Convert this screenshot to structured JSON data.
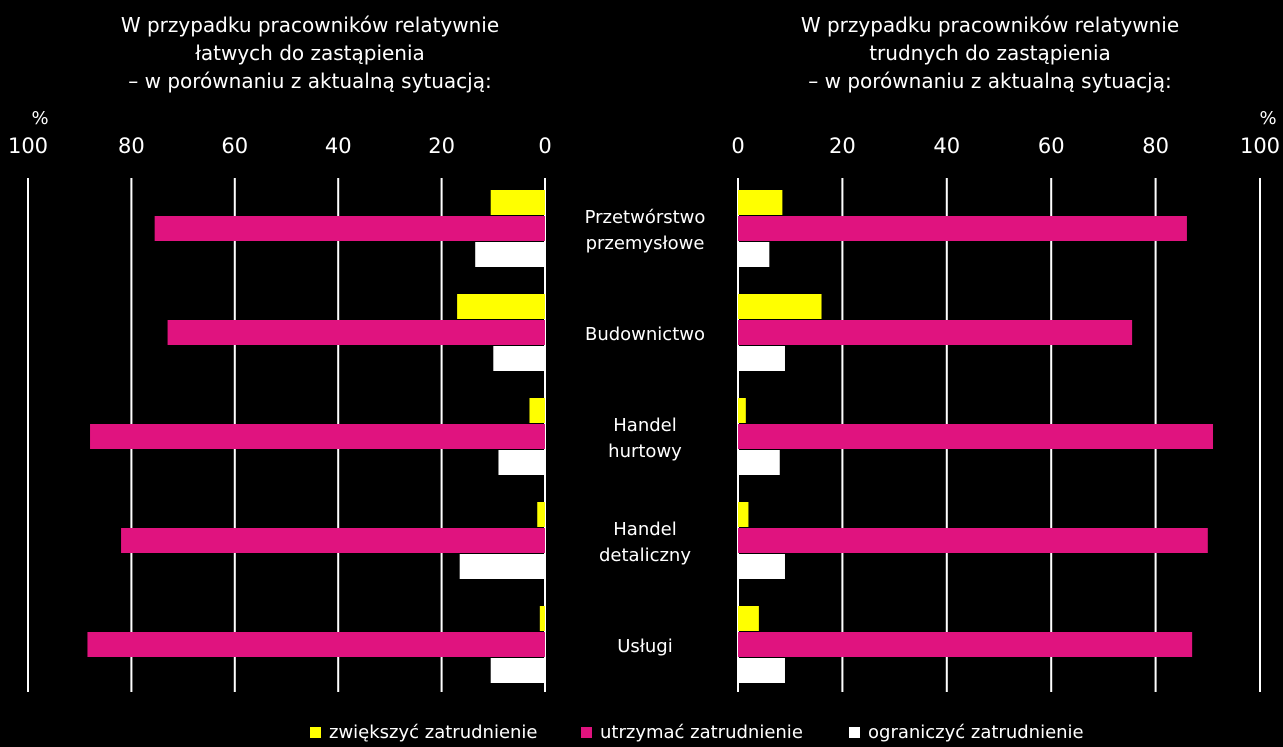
{
  "chart_data": {
    "type": "bar",
    "orientation": "horizontal",
    "categories": [
      [
        "Przetwórstwo",
        "przemysłowe"
      ],
      [
        "Budownictwo"
      ],
      [
        "Handel",
        "hurtowy"
      ],
      [
        "Handel",
        "detaliczny"
      ],
      [
        "Usługi"
      ]
    ],
    "legend": {
      "position": "bottom",
      "entries": [
        {
          "label": "zwiększyć zatrudnienie",
          "color": "#ffff00"
        },
        {
          "label": "utrzymać zatrudnienie",
          "color": "#e0137f"
        },
        {
          "label": "ograniczyć zatrudnienie",
          "color": "#ffffff"
        }
      ]
    },
    "panels": [
      {
        "title": [
          "W przypadku pracowników relatywnie",
          "łatwych do zastąpienia",
          "– w porównaniu z aktualną sytuacją:"
        ],
        "unit": "%",
        "direction": "reversed",
        "xlim": [
          0,
          100
        ],
        "ticks": [
          "100",
          "80",
          "60",
          "40",
          "20",
          "0"
        ],
        "tick_values": [
          100,
          80,
          60,
          40,
          20,
          0
        ],
        "series": [
          {
            "name": "zwiększyć zatrudnienie",
            "values": [
              10.5,
              17,
              3,
              1.5,
              1
            ]
          },
          {
            "name": "utrzymać zatrudnienie",
            "values": [
              75.5,
              73,
              88,
              82,
              88.5
            ]
          },
          {
            "name": "ograniczyć zatrudnienie",
            "values": [
              13.5,
              10,
              9,
              16.5,
              10.5
            ]
          }
        ]
      },
      {
        "title": [
          "W przypadku pracowników relatywnie",
          "trudnych do zastąpienia",
          "– w porównaniu z aktualną sytuacją:"
        ],
        "unit": "%",
        "direction": "normal",
        "xlim": [
          0,
          100
        ],
        "ticks": [
          "0",
          "20",
          "40",
          "60",
          "80",
          "100"
        ],
        "tick_values": [
          0,
          20,
          40,
          60,
          80,
          100
        ],
        "series": [
          {
            "name": "zwiększyć zatrudnienie",
            "values": [
              8.5,
              16,
              1.5,
              2,
              4
            ]
          },
          {
            "name": "utrzymać zatrudnienie",
            "values": [
              86,
              75.5,
              91,
              90,
              87
            ]
          },
          {
            "name": "ograniczyć zatrudnienie",
            "values": [
              6,
              9,
              8,
              9,
              9
            ]
          }
        ]
      }
    ],
    "grid": true
  }
}
